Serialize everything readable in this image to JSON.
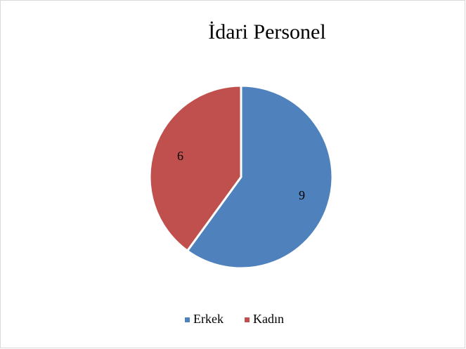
{
  "chart_data": {
    "type": "pie",
    "title": "İdari Personel",
    "categories": [
      "Erkek",
      "Kadın"
    ],
    "values": [
      9,
      6
    ],
    "colors": [
      "#4f81bd",
      "#c0504d"
    ],
    "legend": "bottom"
  }
}
